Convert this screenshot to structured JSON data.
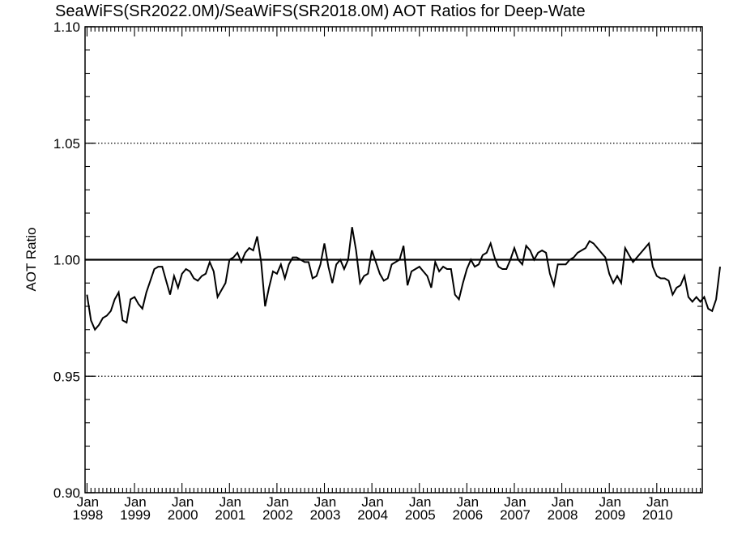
{
  "chart_data": {
    "type": "line",
    "title": "SeaWiFS(SR2022.0M)/SeaWiFS(SR2018.0M)  AOT Ratios for Deep-Wate",
    "ylabel": "AOT Ratio",
    "xlabel": "",
    "ylim": [
      0.9,
      1.1
    ],
    "y_ticks": [
      "0.90",
      "0.95",
      "1.00",
      "1.05",
      "1.10"
    ],
    "y_gridlines_dotted": [
      0.95,
      1.05
    ],
    "reference_line": 1.0,
    "x_start": "1998-01",
    "x_end": "2010-12",
    "x_tick_labels": [
      [
        "Jan",
        "1998"
      ],
      [
        "Jan",
        "1999"
      ],
      [
        "Jan",
        "2000"
      ],
      [
        "Jan",
        "2001"
      ],
      [
        "Jan",
        "2002"
      ],
      [
        "Jan",
        "2003"
      ],
      [
        "Jan",
        "2004"
      ],
      [
        "Jan",
        "2005"
      ],
      [
        "Jan",
        "2006"
      ],
      [
        "Jan",
        "2007"
      ],
      [
        "Jan",
        "2008"
      ],
      [
        "Jan",
        "2009"
      ],
      [
        "Jan",
        "2010"
      ]
    ],
    "series": [
      {
        "values": [
          0.985,
          0.974,
          0.97,
          0.972,
          0.975,
          0.976,
          0.978,
          0.983,
          0.986,
          0.974,
          0.973,
          0.983,
          0.984,
          0.981,
          0.979,
          0.986,
          0.991,
          0.996,
          0.997,
          0.997,
          0.991,
          0.985,
          0.993,
          0.988,
          0.994,
          0.996,
          0.995,
          0.992,
          0.991,
          0.993,
          0.994,
          0.999,
          0.995,
          0.984,
          0.987,
          0.99,
          1.0,
          1.001,
          1.003,
          0.999,
          1.003,
          1.005,
          1.004,
          1.01,
          0.999,
          0.98,
          0.988,
          0.995,
          0.994,
          0.998,
          0.992,
          0.998,
          1.001,
          1.001,
          1.0,
          0.999,
          0.999,
          0.992,
          0.993,
          0.998,
          1.007,
          0.997,
          0.99,
          0.998,
          1.0,
          0.996,
          1.0,
          1.014,
          1.004,
          0.99,
          0.993,
          0.994,
          1.004,
          0.999,
          0.994,
          0.991,
          0.992,
          0.998,
          0.999,
          1.0,
          1.006,
          0.989,
          0.995,
          0.996,
          0.997,
          0.995,
          0.993,
          0.988,
          0.999,
          0.995,
          0.997,
          0.996,
          0.996,
          0.985,
          0.983,
          0.99,
          0.996,
          1.0,
          0.997,
          0.998,
          1.002,
          1.003,
          1.007,
          1.001,
          0.997,
          0.996,
          0.996,
          1.0,
          1.005,
          1.0,
          0.998,
          1.006,
          1.004,
          1.0,
          1.003,
          1.004,
          1.003,
          0.994,
          0.989,
          0.998,
          0.998,
          0.998,
          1.0,
          1.001,
          1.003,
          1.004,
          1.005,
          1.008,
          1.007,
          1.005,
          1.003,
          1.001,
          0.994,
          0.99,
          0.993,
          0.99,
          1.005,
          1.002,
          0.999,
          1.001,
          1.003,
          1.005,
          1.007,
          0.997,
          0.993,
          0.992,
          0.992,
          0.991,
          0.985,
          0.988,
          0.989,
          0.993,
          0.984,
          0.982,
          0.984,
          0.982,
          0.984,
          0.979,
          0.978,
          0.983,
          0.997
        ]
      }
    ]
  }
}
